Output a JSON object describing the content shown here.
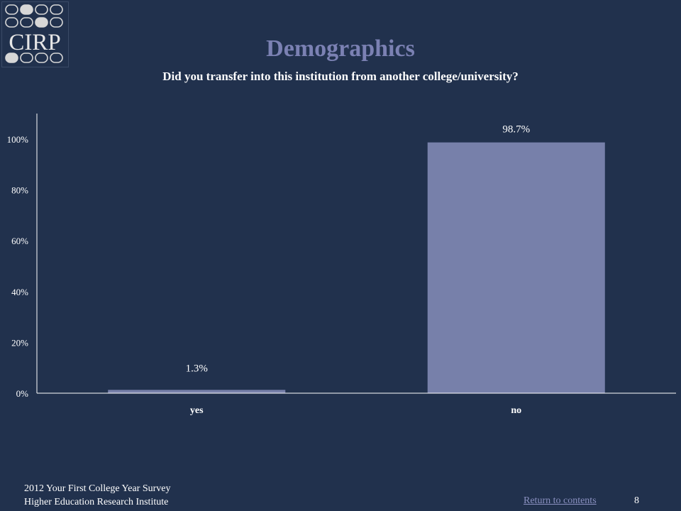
{
  "logo": {
    "text": "CIRP"
  },
  "header": {
    "title": "Demographics",
    "subtitle": "Did you transfer into this institution from another college/university?"
  },
  "chart_data": {
    "type": "bar",
    "categories": [
      "yes",
      "no"
    ],
    "values": [
      1.3,
      98.7
    ],
    "value_labels": [
      "1.3%",
      "98.7%"
    ],
    "yticks": [
      "0%",
      "20%",
      "40%",
      "60%",
      "80%",
      "100%"
    ],
    "ylim": [
      0,
      110
    ],
    "grid": false,
    "bar_color": "#7780aa"
  },
  "footer": {
    "line1": "2012 Your First College Year Survey",
    "line2": "Higher Education Research Institute",
    "return_link": "Return to contents",
    "page_number": "8"
  }
}
